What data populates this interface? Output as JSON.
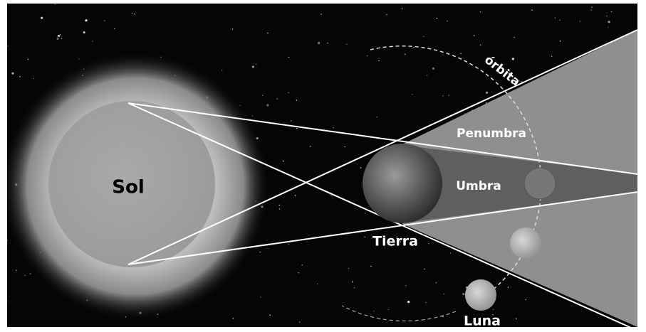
{
  "labels": {
    "orbit": "órbita",
    "penumbra": "Penumbra",
    "umbra": "Umbra",
    "sun": "Sol",
    "earth": "Tierra",
    "moon": "Luna"
  }
}
